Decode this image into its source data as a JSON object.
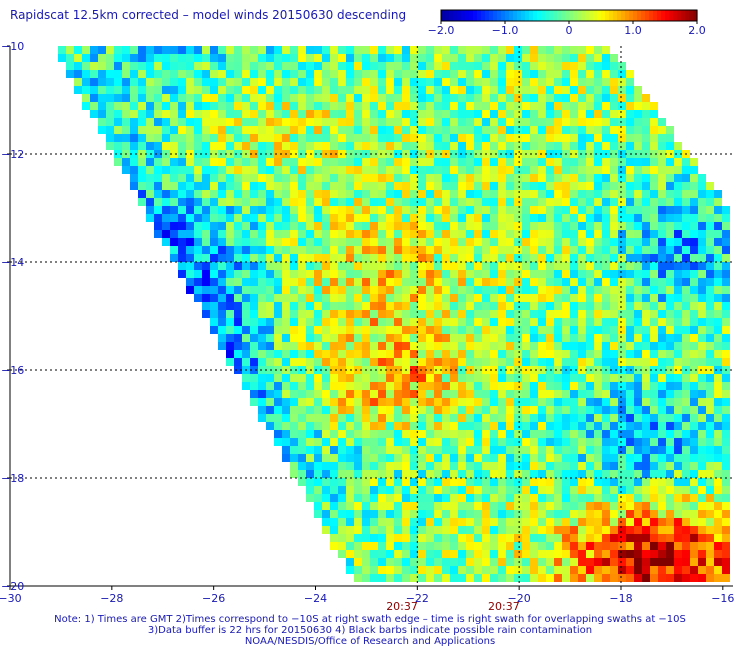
{
  "title": "Rapidscat 12.5km corrected – model winds 20150630 descending",
  "notes": {
    "line1": "Note: 1) Times are GMT 2)Times correspond to −10S at right swath edge – time is right swath for overlapping swaths at −10S",
    "line2": "3)Data buffer is 22 hrs for 20150630 4) Black barbs indicate possible rain contamination",
    "line3": "NOAA/NESDIS/Office of Research and Applications"
  },
  "chart_data": {
    "type": "heatmap",
    "title": "Rapidscat 12.5km corrected – model winds 20150630 descending",
    "x_ticks": [
      "−30",
      "−28",
      "−26",
      "−24",
      "−22",
      "−20",
      "−18",
      "−16"
    ],
    "y_ticks": [
      "−10",
      "−12",
      "−14",
      "−16",
      "−18",
      "−20"
    ],
    "xlim": [
      -30,
      -15.8
    ],
    "ylim": [
      -20,
      -10
    ],
    "grid": true,
    "grid_lines_x": [
      -22,
      -20,
      -18
    ],
    "grid_lines_y": [
      -12,
      -14,
      -16,
      -18
    ],
    "swath_times": [
      {
        "label": "20:37",
        "lon": -22.3
      },
      {
        "label": "20:37",
        "lon": -20.3
      }
    ],
    "colorbar": {
      "range": [
        -2.0,
        2.0
      ],
      "ticks": [
        "−2.0",
        "−1.0",
        "0",
        "1.0",
        "2.0"
      ],
      "colors": [
        "#0000a0",
        "#0000ff",
        "#0080ff",
        "#00ffff",
        "#80ff80",
        "#ffff00",
        "#ff8000",
        "#ff0000",
        "#800000"
      ]
    },
    "swath_polygon_lonlat": [
      [
        -29.0,
        -10.0
      ],
      [
        -18.2,
        -10.0
      ],
      [
        -15.8,
        -13.1
      ],
      [
        -15.8,
        -20.0
      ],
      [
        -23.2,
        -20.0
      ],
      [
        -29.0,
        -10.3
      ]
    ],
    "regions": [
      {
        "name": "positive-band-upper",
        "lon": [
          -27.0,
          -23.5
        ],
        "lat": [
          -12.8,
          -11.0
        ],
        "mean_difference": 1.3
      },
      {
        "name": "positive-band-middle",
        "lon": [
          -25.0,
          -22.0
        ],
        "lat": [
          -15.3,
          -13.5
        ],
        "mean_difference": 1.2
      },
      {
        "name": "positive-band-lower",
        "lon": [
          -24.0,
          -22.0
        ],
        "lat": [
          -16.6,
          -15.8
        ],
        "mean_difference": 1.1
      },
      {
        "name": "swath-edge-lower-right",
        "lon": [
          -18.5,
          -16.0
        ],
        "lat": [
          -20.0,
          -19.0
        ],
        "mean_difference": 1.6
      },
      {
        "name": "negative-patch-east",
        "lon": [
          -17.5,
          -16.0
        ],
        "lat": [
          -14.5,
          -13.0
        ],
        "mean_difference": -0.8
      },
      {
        "name": "negative-patch-southeast",
        "lon": [
          -18.5,
          -16.5
        ],
        "lat": [
          -17.8,
          -16.8
        ],
        "mean_difference": -0.8
      },
      {
        "name": "swath-edge-west",
        "lon": [
          -29.0,
          -23.5
        ],
        "lat": [
          -17.8,
          -10.3
        ],
        "mean_difference": -1.5
      }
    ]
  }
}
